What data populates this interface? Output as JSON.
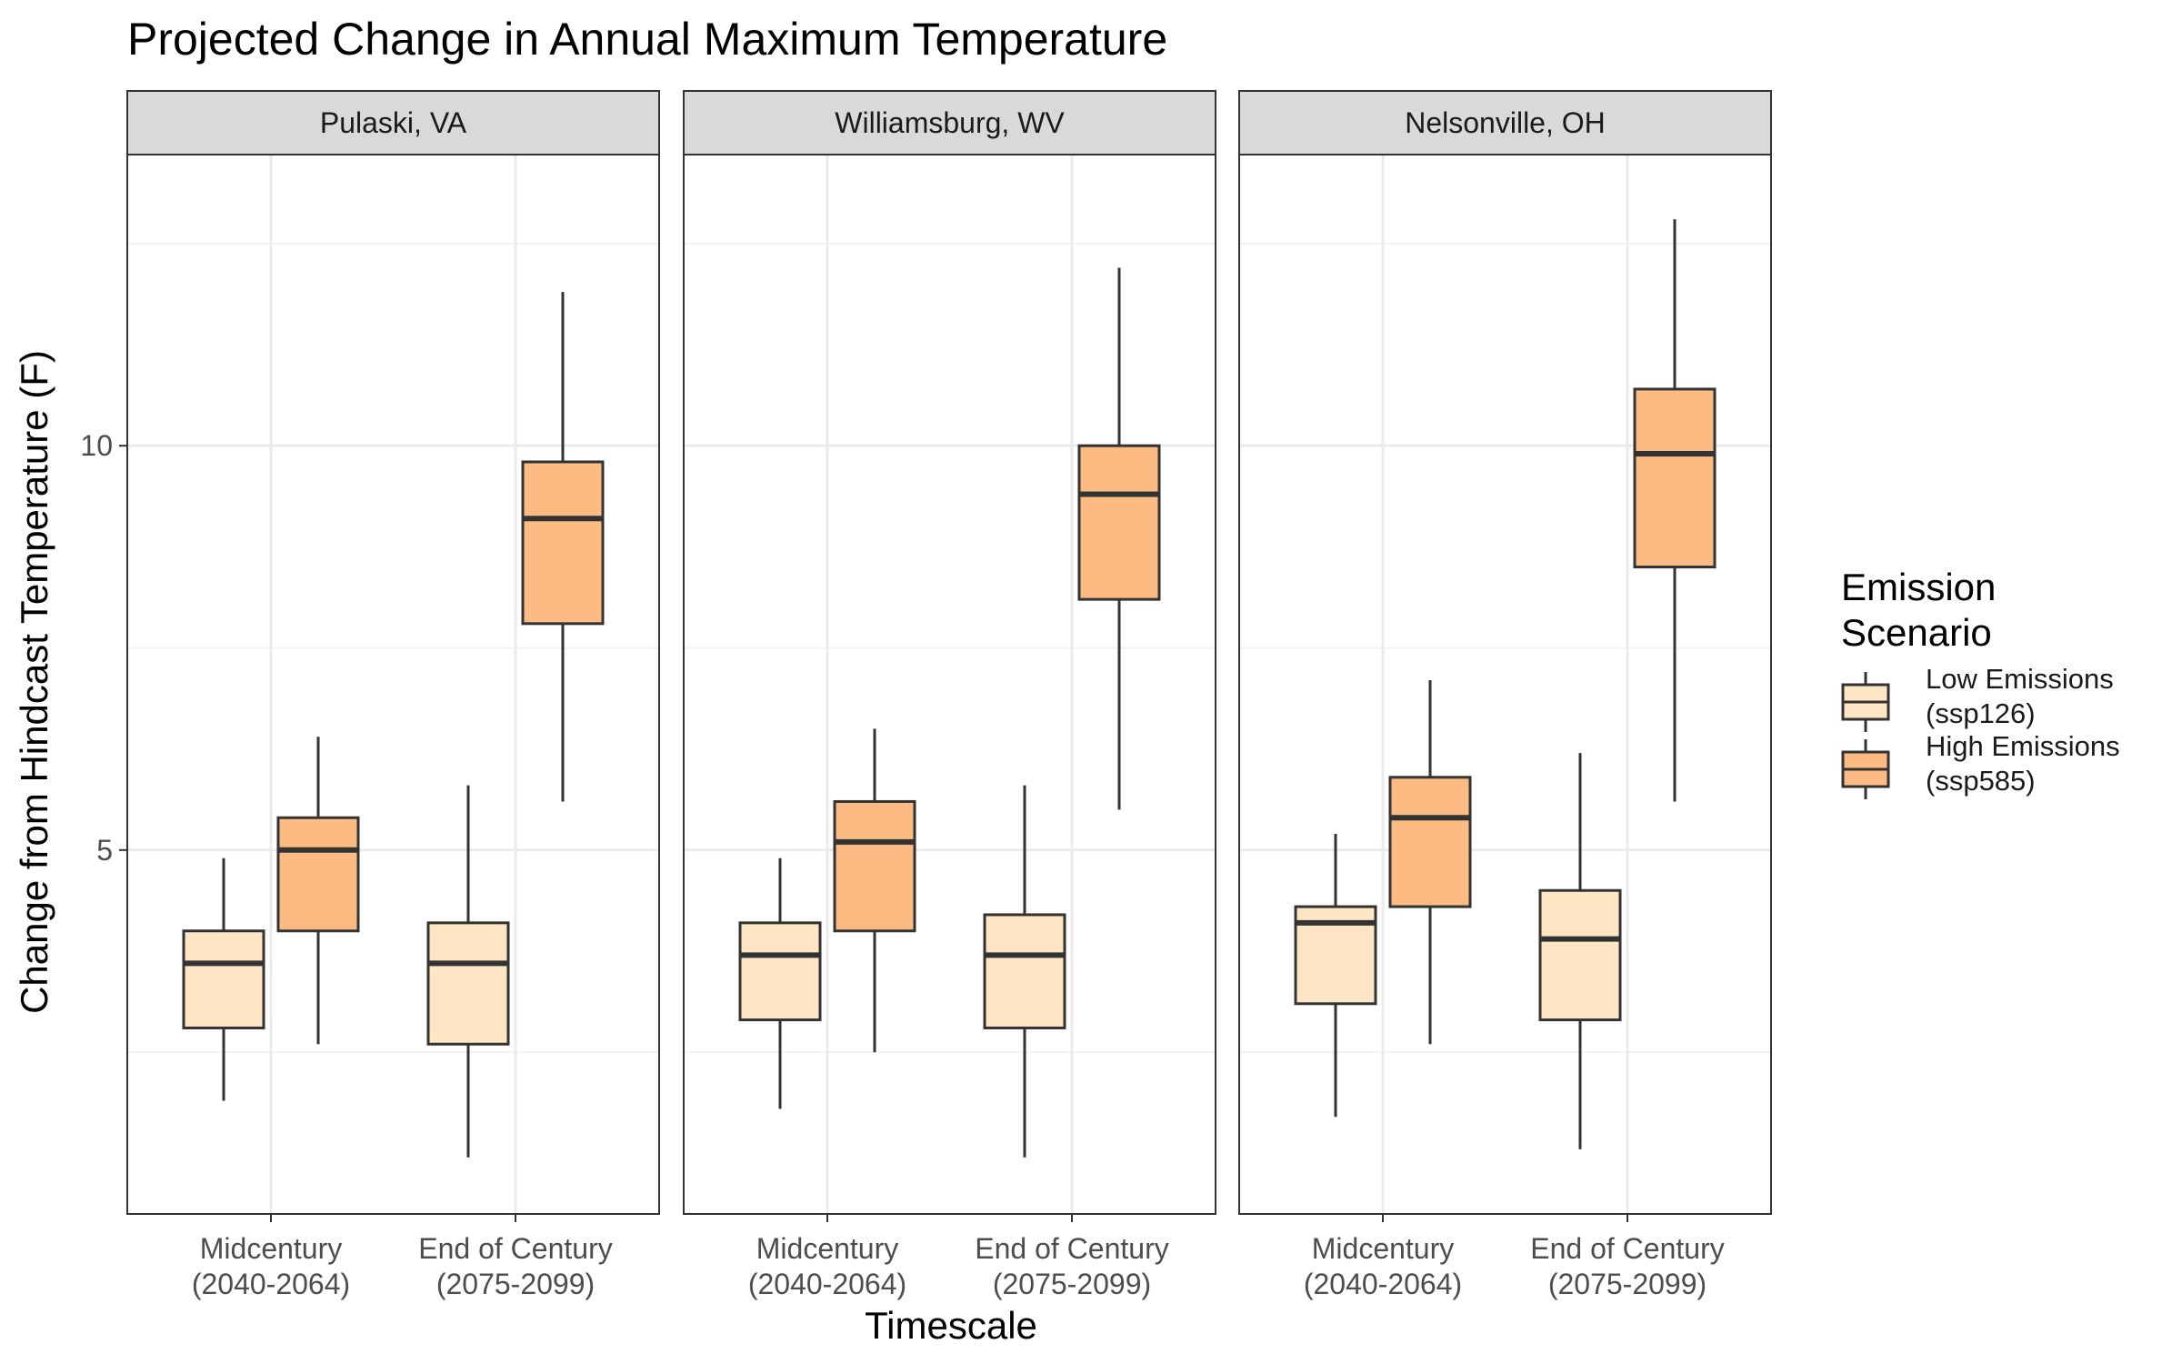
{
  "chart_data": {
    "type": "boxplot",
    "title": "Projected Change in Annual Maximum Temperature",
    "xlabel": "Timescale",
    "ylabel": "Change from Hindcast Temperature (F)",
    "ylim": [
      0.5,
      13.6
    ],
    "yticks": [
      5,
      10
    ],
    "grid": true,
    "legend": {
      "title_lines": [
        "Emission",
        "Scenario"
      ],
      "placement": "right",
      "entries": [
        {
          "key": "low",
          "lines": [
            "Low Emissions",
            "(ssp126)"
          ],
          "color": "#fee6c5"
        },
        {
          "key": "high",
          "lines": [
            "High Emissions",
            "(ssp585)"
          ],
          "color": "#fdbb84"
        }
      ]
    },
    "categories": [
      {
        "lines": [
          "Midcentury",
          "(2040-2064)"
        ]
      },
      {
        "lines": [
          "End of Century",
          "(2075-2099)"
        ]
      }
    ],
    "panels": [
      {
        "name": "Pulaski, VA",
        "boxes": [
          {
            "category": 0,
            "series": "low",
            "min": 1.9,
            "q1": 2.8,
            "median": 3.6,
            "q3": 4.0,
            "max": 4.9
          },
          {
            "category": 0,
            "series": "high",
            "min": 2.6,
            "q1": 4.0,
            "median": 5.0,
            "q3": 5.4,
            "max": 6.4
          },
          {
            "category": 1,
            "series": "low",
            "min": 1.2,
            "q1": 2.6,
            "median": 3.6,
            "q3": 4.1,
            "max": 5.8
          },
          {
            "category": 1,
            "series": "high",
            "min": 5.6,
            "q1": 7.8,
            "median": 9.1,
            "q3": 9.8,
            "max": 11.9
          }
        ]
      },
      {
        "name": "Williamsburg, WV",
        "boxes": [
          {
            "category": 0,
            "series": "low",
            "min": 1.8,
            "q1": 2.9,
            "median": 3.7,
            "q3": 4.1,
            "max": 4.9
          },
          {
            "category": 0,
            "series": "high",
            "min": 2.5,
            "q1": 4.0,
            "median": 5.1,
            "q3": 5.6,
            "max": 6.5
          },
          {
            "category": 1,
            "series": "low",
            "min": 1.2,
            "q1": 2.8,
            "median": 3.7,
            "q3": 4.2,
            "max": 5.8
          },
          {
            "category": 1,
            "series": "high",
            "min": 5.5,
            "q1": 8.1,
            "median": 9.4,
            "q3": 10.0,
            "max": 12.2
          }
        ]
      },
      {
        "name": "Nelsonville, OH",
        "boxes": [
          {
            "category": 0,
            "series": "low",
            "min": 1.7,
            "q1": 3.1,
            "median": 4.1,
            "q3": 4.3,
            "max": 5.2
          },
          {
            "category": 0,
            "series": "high",
            "min": 2.6,
            "q1": 4.3,
            "median": 5.4,
            "q3": 5.9,
            "max": 7.1
          },
          {
            "category": 1,
            "series": "low",
            "min": 1.3,
            "q1": 2.9,
            "median": 3.9,
            "q3": 4.5,
            "max": 6.2
          },
          {
            "category": 1,
            "series": "high",
            "min": 5.6,
            "q1": 8.5,
            "median": 9.9,
            "q3": 10.7,
            "max": 12.8
          }
        ]
      }
    ]
  }
}
